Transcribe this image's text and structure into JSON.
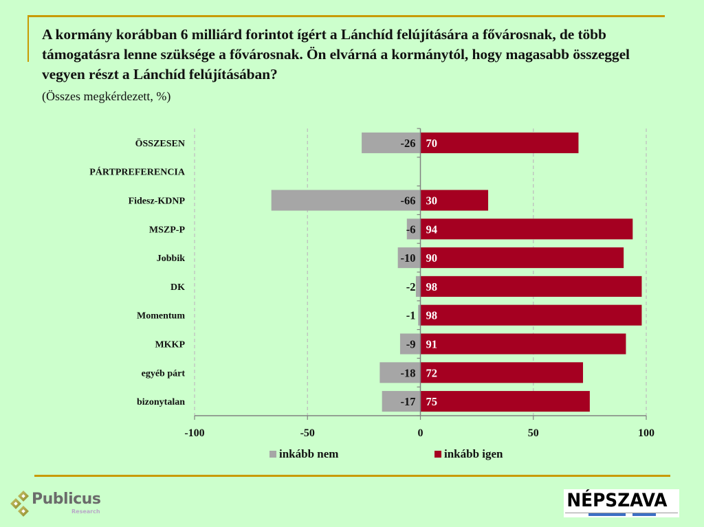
{
  "header": {
    "title": "A kormány korábban 6 milliárd forintot ígért a Lánchíd felújítására a fővárosnak, de több támogatásra lenne szüksége a fővárosnak. Ön elvárná a kormánytól, hogy magasabb összeggel vegyen részt a Lánchíd felújításában?",
    "subtitle": "(Összes megkérdezett, %)"
  },
  "colors": {
    "background": "#CCFFCC",
    "accent_rule": "#C89A00",
    "series_no": "#A6A6A6",
    "series_yes": "#A50021"
  },
  "chart_data": {
    "type": "bar",
    "orientation": "horizontal",
    "stacked": "diverging",
    "title": "A kormány korábban 6 milliárd forintot ígért a Lánchíd felújítására a fővárosnak, de több támogatásra lenne szüksége a fővárosnak. Ön elvárná a kormánytól, hogy magasabb összeggel vegyen részt a Lánchíd felújításában?",
    "subtitle": "(Összes megkérdezett, %)",
    "xlabel": "",
    "ylabel": "",
    "xlim": [
      -100,
      100
    ],
    "xticks": [
      -100,
      -50,
      0,
      50,
      100
    ],
    "grid": "vertical-dashed",
    "legend_position": "bottom",
    "categories": [
      "ÖSSZESEN",
      "PÁRTPREFERENCIA",
      "Fidesz-KDNP",
      "MSZP-P",
      "Jobbik",
      "DK",
      "Momentum",
      "MKKP",
      "egyéb párt",
      "bizonytalan"
    ],
    "series": [
      {
        "name": "inkább nem",
        "color": "#A6A6A6",
        "values": [
          -26,
          null,
          -66,
          -6,
          -10,
          -2,
          -1,
          -9,
          -18,
          -17
        ]
      },
      {
        "name": "inkább igen",
        "color": "#A50021",
        "values": [
          70,
          null,
          30,
          94,
          90,
          98,
          98,
          91,
          72,
          75
        ]
      }
    ]
  },
  "legend": [
    {
      "label": "inkább nem",
      "color": "#A6A6A6"
    },
    {
      "label": "inkább igen",
      "color": "#A50021"
    }
  ],
  "logos": {
    "left": {
      "name": "Publicus",
      "sub": "Research"
    },
    "right": {
      "name": "NÉPSZAVA"
    }
  }
}
